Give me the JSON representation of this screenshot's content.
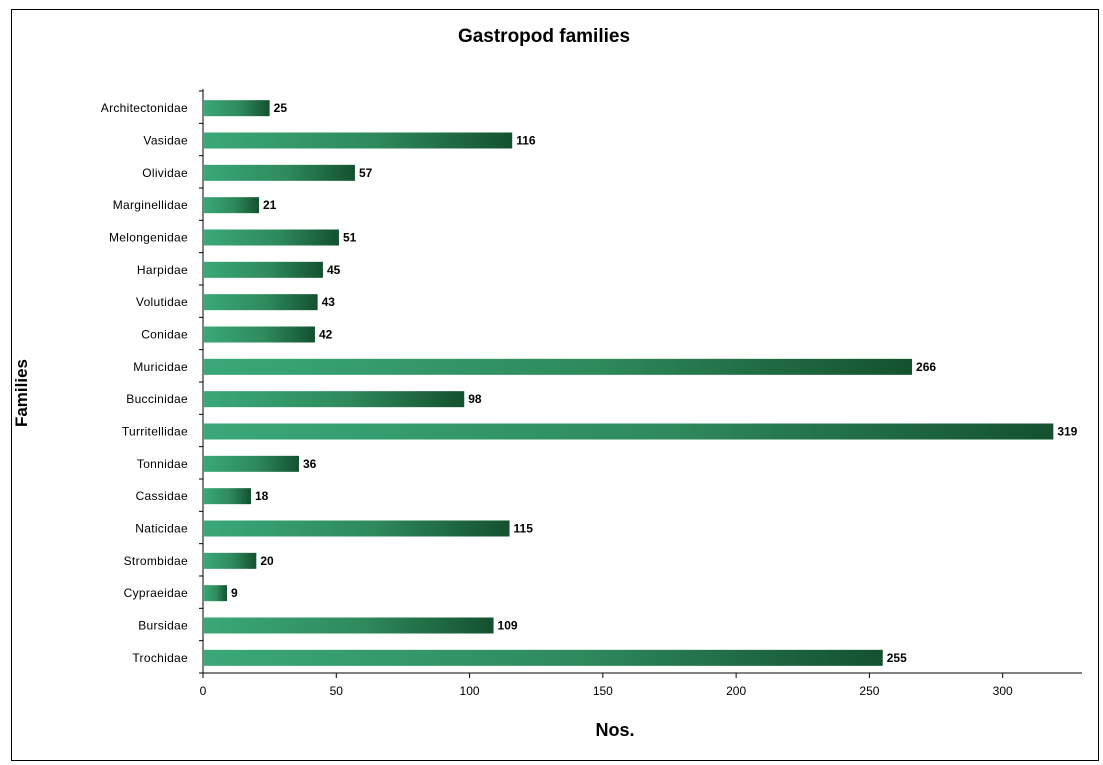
{
  "chart_data": {
    "type": "bar",
    "orientation": "horizontal",
    "title": "Gastropod families",
    "xlabel": "Nos.",
    "ylabel": "Families",
    "categories": [
      "Architectonidae",
      "Vasidae",
      "Olividae",
      "Marginellidae",
      "Melongenidae",
      "Harpidae",
      "Volutidae",
      "Conidae",
      "Muricidae",
      "Buccinidae",
      "Turritellidae",
      "Tonnidae",
      "Cassidae",
      "Naticidae",
      "Strombidae",
      "Cypraeidae",
      "Bursidae",
      "Trochidae"
    ],
    "values": [
      25,
      116,
      57,
      21,
      51,
      45,
      43,
      42,
      266,
      98,
      319,
      36,
      18,
      115,
      20,
      9,
      109,
      255
    ],
    "value_labels": [
      "25",
      "116",
      "57",
      "21",
      "51",
      "45",
      "43",
      "42",
      "266",
      "98",
      "319",
      "36",
      "18",
      "115",
      "20",
      "9",
      "109",
      "255"
    ],
    "xlim": [
      0,
      330
    ],
    "xticks": [
      0,
      50,
      100,
      150,
      200,
      250,
      300
    ],
    "xtick_labels": [
      "0",
      "50",
      "100",
      "150",
      "200",
      "250",
      "300"
    ],
    "grid": false,
    "legend": "none",
    "colors": {
      "bar_light": "#3aa878",
      "bar_dark": "#14512f"
    }
  }
}
